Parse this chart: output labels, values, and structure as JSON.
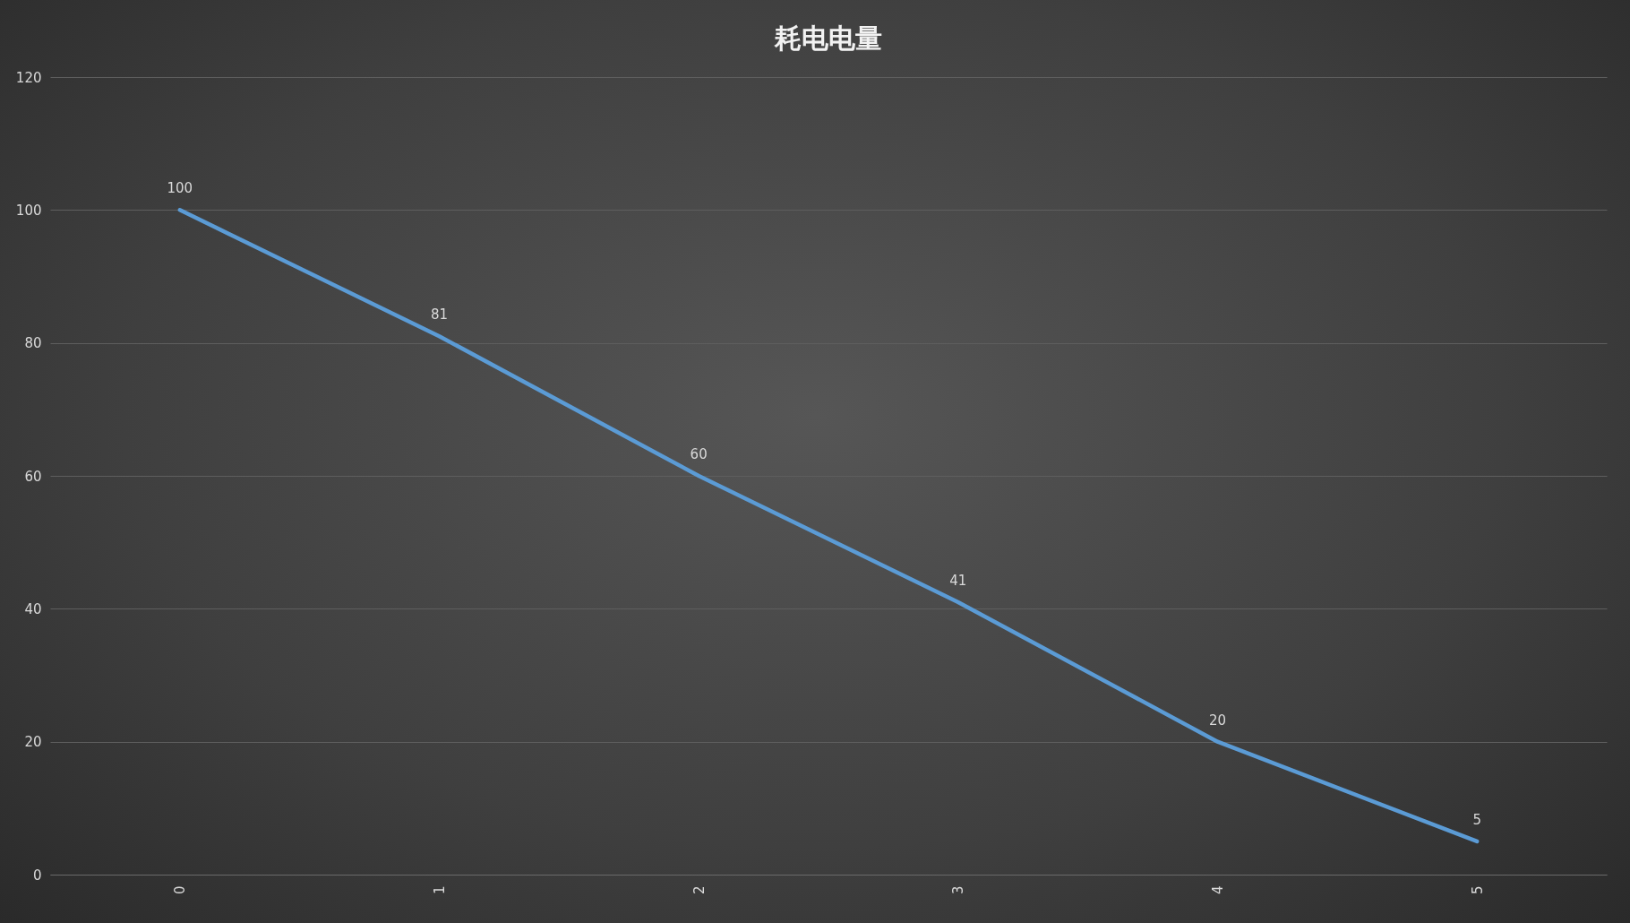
{
  "chart_data": {
    "type": "line",
    "title": "耗电电量",
    "categories": [
      "0",
      "1",
      "2",
      "3",
      "4",
      "5"
    ],
    "values": [
      100,
      81,
      60,
      41,
      20,
      5
    ],
    "color": "#5b9bd5",
    "ylim": [
      0,
      120
    ],
    "yticks": [
      0,
      20,
      40,
      60,
      80,
      100,
      120
    ],
    "grid": "y",
    "data_labels": true
  }
}
